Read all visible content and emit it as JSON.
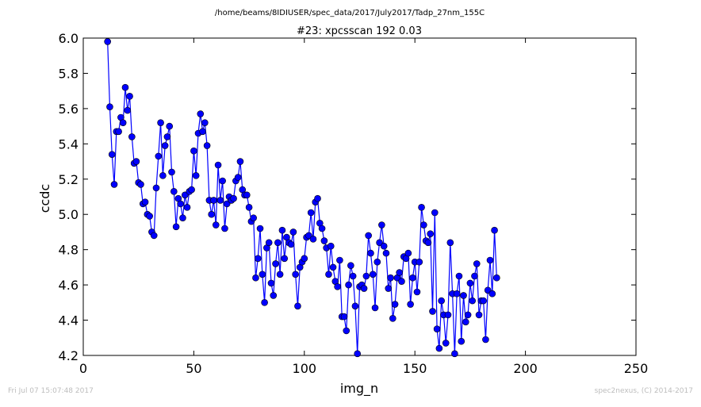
{
  "footer": {
    "timestamp": "Fri Jul 07 15:07:48 2017",
    "credit": "spec2nexus, (C) 2014-2017"
  },
  "chart_data": {
    "type": "line",
    "title": "#23: xpcsscan 192 0.03",
    "subtitle": "/home/beams/8IDIUSER/spec_data/2017/July2017/Tadp_27nm_155C",
    "xlabel": "img_n",
    "ylabel": "ccdc",
    "xlim": [
      0,
      250
    ],
    "ylim": [
      4.2,
      6.0
    ],
    "xticks": [
      "0",
      "50",
      "100",
      "150",
      "200",
      "250"
    ],
    "yticks": [
      "4.2",
      "4.4",
      "4.6",
      "4.8",
      "5.0",
      "5.2",
      "5.4",
      "5.6",
      "5.8",
      "6.0"
    ],
    "grid": false,
    "marker": "circle",
    "color": "#0000ff",
    "x_start": 11,
    "values": [
      5.98,
      5.61,
      5.34,
      5.17,
      5.47,
      5.47,
      5.55,
      5.52,
      5.72,
      5.59,
      5.67,
      5.44,
      5.29,
      5.3,
      5.18,
      5.17,
      5.06,
      5.07,
      5.0,
      4.99,
      4.9,
      4.88,
      5.15,
      5.33,
      5.52,
      5.22,
      5.39,
      5.44,
      5.5,
      5.24,
      5.13,
      4.93,
      5.09,
      5.06,
      4.98,
      5.11,
      5.04,
      5.13,
      5.14,
      5.36,
      5.22,
      5.46,
      5.57,
      5.47,
      5.52,
      5.39,
      5.08,
      5.0,
      5.08,
      4.94,
      5.28,
      5.08,
      5.19,
      4.92,
      5.06,
      5.1,
      5.08,
      5.09,
      5.19,
      5.21,
      5.3,
      5.14,
      5.11,
      5.11,
      5.04,
      4.96,
      4.98,
      4.64,
      4.75,
      4.92,
      4.66,
      4.5,
      4.81,
      4.84,
      4.61,
      4.54,
      4.72,
      4.84,
      4.66,
      4.91,
      4.75,
      4.87,
      4.84,
      4.83,
      4.9,
      4.66,
      4.48,
      4.7,
      4.73,
      4.75,
      4.87,
      4.88,
      5.01,
      4.86,
      5.07,
      5.09,
      4.95,
      4.92,
      4.85,
      4.81,
      4.66,
      4.82,
      4.7,
      4.62,
      4.59,
      4.74,
      4.42,
      4.42,
      4.34,
      4.6,
      4.71,
      4.65,
      4.48,
      4.21,
      4.59,
      4.6,
      4.58,
      4.65,
      4.88,
      4.78,
      4.66,
      4.47,
      4.73,
      4.84,
      4.94,
      4.82,
      4.78,
      4.58,
      4.64,
      4.41,
      4.49,
      4.64,
      4.67,
      4.62,
      4.76,
      4.75,
      4.78,
      4.49,
      4.64,
      4.73,
      4.56,
      4.73,
      5.04,
      4.94,
      4.85,
      4.84,
      4.89,
      4.45,
      5.01,
      4.35,
      4.24,
      4.51,
      4.43,
      4.27,
      4.43,
      4.84,
      4.55,
      4.21,
      4.55,
      4.65,
      4.28,
      4.54,
      4.39,
      4.43,
      4.61,
      4.51,
      4.65,
      4.72,
      4.43,
      4.51,
      4.51,
      4.29,
      4.57,
      4.74,
      4.55,
      4.91,
      4.64
    ]
  }
}
